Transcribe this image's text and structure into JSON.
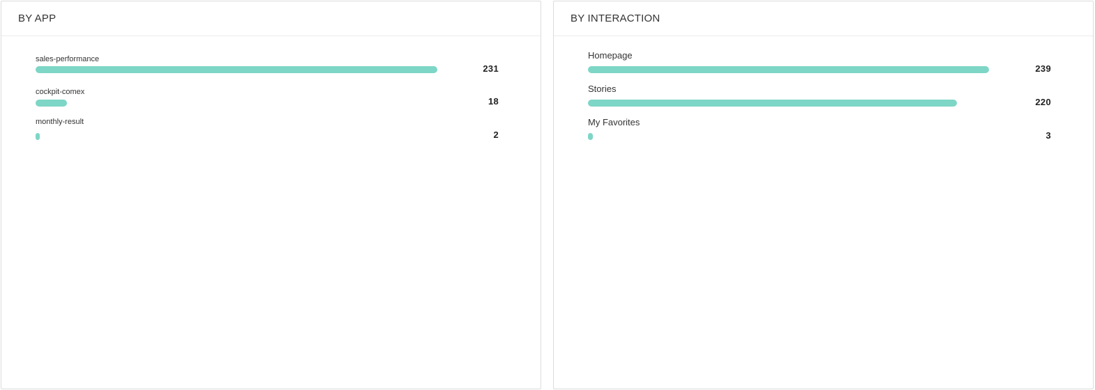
{
  "colors": {
    "bar": "#7dd6c6",
    "border": "#dcdcdc",
    "text": "#333333"
  },
  "panels": [
    {
      "title": "BY APP",
      "items": [
        {
          "label": "sales-performance",
          "value": 231
        },
        {
          "label": "cockpit-comex",
          "value": 18
        },
        {
          "label": "monthly-result",
          "value": 2
        }
      ]
    },
    {
      "title": "BY INTERACTION",
      "items": [
        {
          "label": "Homepage",
          "value": 239
        },
        {
          "label": "Stories",
          "value": 220
        },
        {
          "label": "My Favorites",
          "value": 3
        }
      ]
    }
  ],
  "chart_data": [
    {
      "type": "bar",
      "orientation": "horizontal",
      "title": "BY APP",
      "categories": [
        "sales-performance",
        "cockpit-comex",
        "monthly-result"
      ],
      "values": [
        231,
        18,
        2
      ],
      "xlabel": "",
      "ylabel": "",
      "grid": false,
      "legend": "none"
    },
    {
      "type": "bar",
      "orientation": "horizontal",
      "title": "BY INTERACTION",
      "categories": [
        "Homepage",
        "Stories",
        "My Favorites"
      ],
      "values": [
        239,
        220,
        3
      ],
      "xlabel": "",
      "ylabel": "",
      "grid": false,
      "legend": "none"
    }
  ]
}
